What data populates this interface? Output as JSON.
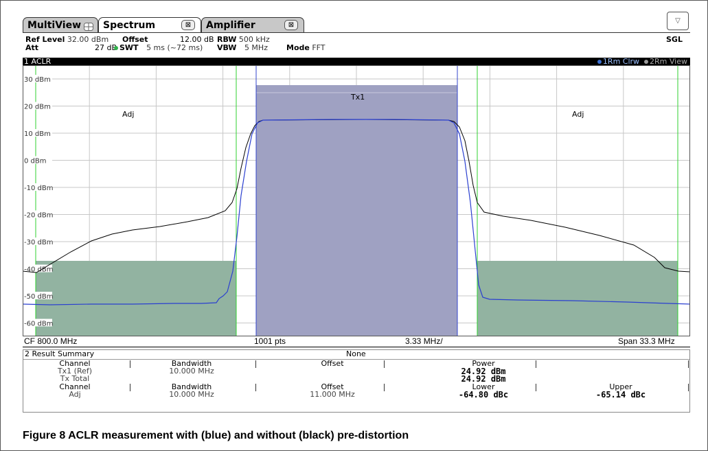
{
  "tabs": [
    {
      "label": "MultiView",
      "icon": "grid-icon"
    },
    {
      "label": "Spectrum",
      "icon": "close-icon"
    },
    {
      "label": "Amplifier",
      "icon": "close-icon"
    }
  ],
  "header": {
    "ref_level_label": "Ref Level",
    "ref_level_value": "32.00 dBm",
    "offset_label": "Offset",
    "offset_value": "12.00 dB",
    "rbw_label": "RBW",
    "rbw_value": "500 kHz",
    "att_label": "Att",
    "att_value": "27 dB",
    "swt_label": "SWT",
    "swt_value": "5 ms (~72 ms)",
    "vbw_label": "VBW",
    "vbw_value": "5 MHz",
    "mode_label": "Mode",
    "mode_value": "FFT",
    "sgl": "SGL"
  },
  "plot": {
    "title": "1 ACLR",
    "trace1_label": "1Rm Clrw",
    "trace2_label": "2Rm View",
    "trace1_color": "#3b6fd1",
    "trace2_color": "#9a9a9a",
    "tx_label": "Tx1",
    "adj_left_label": "Adj",
    "adj_right_label": "Adj",
    "y_ticks": [
      "30 dBm",
      "20 dBm",
      "10 dBm",
      "0 dBm",
      "-10 dBm",
      "-20 dBm",
      "-30 dBm",
      "-40 dBm",
      "-50 dBm",
      "-60 dBm"
    ],
    "cf_label": "CF 800.0 MHz",
    "pts_label": "1001 pts",
    "div_label": "3.33 MHz/",
    "span_label": "Span 33.3 MHz",
    "colors": {
      "tx_fill": "#9fa1c2",
      "adj_fill": "#92b3a1",
      "blue_trace": "#2a3fd0",
      "black_trace": "#000000",
      "limit_green": "#2fd12f"
    }
  },
  "result_summary": {
    "title": "2 Result Summary",
    "none": "None",
    "headers1": [
      "Channel",
      "Bandwidth",
      "Offset",
      "Power"
    ],
    "row_tx1": {
      "channel": "Tx1 (Ref)",
      "bandwidth": "10.000 MHz",
      "power": "24.92 dBm"
    },
    "row_total": {
      "channel": "Tx Total",
      "power": "24.92 dBm"
    },
    "headers2": [
      "Channel",
      "Bandwidth",
      "Offset",
      "Lower",
      "Upper"
    ],
    "row_adj": {
      "channel": "Adj",
      "bandwidth": "10.000 MHz",
      "offset": "11.000 MHz",
      "lower": "-64.80 dBc",
      "upper": "-65.14 dBc"
    }
  },
  "caption": "Figure 8 ACLR measurement with (blue) and without (black) pre-distortion"
}
